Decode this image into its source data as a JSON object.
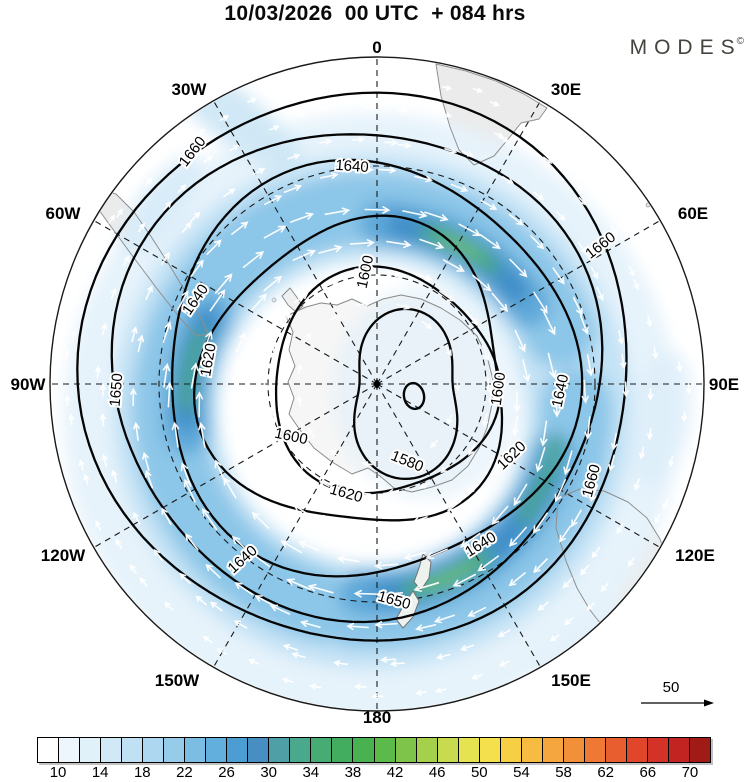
{
  "header": {
    "title": "10/03/2026  00 UTC  + 084 hrs"
  },
  "brand": {
    "name": "MODES",
    "mark": "©"
  },
  "map": {
    "longitude_labels": [
      "0",
      "30E",
      "60E",
      "90E",
      "120E",
      "150E",
      "180",
      "150W",
      "120W",
      "90W",
      "60W",
      "30W"
    ],
    "contour_labels": [
      "1660",
      "1640",
      "1600",
      "1660",
      "1640",
      "1620",
      "1650",
      "1600",
      "1580",
      "1620",
      "1640",
      "1650",
      "1640",
      "1620",
      "1600",
      "1640",
      "1660"
    ],
    "inner_contour_marker": "O"
  },
  "reference_vector": {
    "label": "50"
  },
  "colorbar": {
    "tick_labels": [
      "10",
      "14",
      "18",
      "22",
      "26",
      "30",
      "34",
      "38",
      "42",
      "46",
      "50",
      "54",
      "58",
      "62",
      "66",
      "70"
    ],
    "cell_colors": [
      "#ffffff",
      "#edf6fc",
      "#e0f1fa",
      "#d1e9f7",
      "#c0e0f4",
      "#add7f0",
      "#96cbea",
      "#7cbde4",
      "#62aedd",
      "#4c9dd2",
      "#478fc2",
      "#4f9fa7",
      "#4aa88c",
      "#47ab74",
      "#43ad5f",
      "#47b24f",
      "#5cba4a",
      "#7ec44b",
      "#a5d04c",
      "#c8db4e",
      "#e6e350",
      "#f4df4c",
      "#f6cf45",
      "#f7bb42",
      "#f6a63e",
      "#f28f39",
      "#ee7834",
      "#e95e2f",
      "#e1462b",
      "#d43127",
      "#c22421",
      "#a01a16"
    ]
  },
  "chart_data": {
    "type": "contour-map",
    "projection": "south-polar",
    "title": "10/03/2026 00 UTC + 084 hrs",
    "forecast_lead_hours": 84,
    "contour_levels_labeled": [
      1580,
      1600,
      1620,
      1640,
      1650,
      1660
    ],
    "meridian_labels": [
      "0",
      "30E",
      "60E",
      "90E",
      "120E",
      "150E",
      "180",
      "150W",
      "120W",
      "90W",
      "60W",
      "30W"
    ],
    "shading_scale": {
      "min": 8,
      "max": 72,
      "cell_step": 2,
      "tick_start": 10,
      "tick_step": 4,
      "tick_end": 70
    },
    "reference_vector_value": 50
  }
}
